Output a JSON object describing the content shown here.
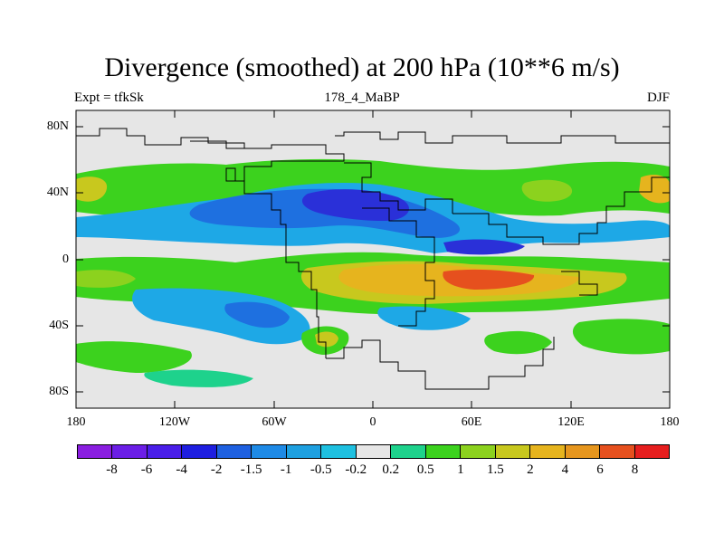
{
  "title": "Divergence (smoothed) at 200 hPa (10**6 m/s)",
  "subtitle_left": "Expt = tfkSk",
  "subtitle_center": "178_4_MaBP",
  "subtitle_right": "DJF",
  "lat_labels": [
    "80N",
    "40N",
    "0",
    "40S",
    "80S"
  ],
  "lon_labels": [
    "180",
    "120W",
    "60W",
    "0",
    "60E",
    "120E",
    "180"
  ],
  "colorbar": {
    "labels": [
      "-8",
      "-6",
      "-4",
      "-2",
      "-1.5",
      "-1",
      "-0.5",
      "-0.2",
      "0.2",
      "0.5",
      "1",
      "1.5",
      "2",
      "4",
      "6",
      "8"
    ],
    "colors": [
      "#8a1ee0",
      "#6b1ee6",
      "#4a1ee8",
      "#1e1ee0",
      "#1e60e0",
      "#1e8ae6",
      "#1ea0e0",
      "#1ec0e0",
      "#e6e6e6",
      "#1ed28c",
      "#3cd21e",
      "#8cd21e",
      "#c8c81e",
      "#e6b41e",
      "#e6961e",
      "#e6501e",
      "#e61e1e"
    ]
  },
  "colors": {
    "background": "#e6e6e6",
    "neg_strong": "#2a30d8",
    "neg_mid": "#1e70e0",
    "neg_weak": "#1ea8e6",
    "pos_weak": "#1ed28c",
    "pos_mid": "#8cd21e",
    "pos_strong": "#e6b41e",
    "pos_max": "#e6501e"
  }
}
